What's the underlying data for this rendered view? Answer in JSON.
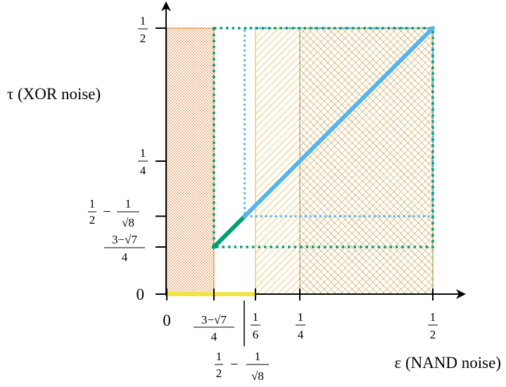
{
  "axes": {
    "x_label": "ε (NAND noise)",
    "y_label": "τ (XOR noise)",
    "x_ticks": [
      {
        "key": "zero",
        "text": "0",
        "value": 0
      },
      {
        "key": "c",
        "num": "3−√7",
        "den": "4",
        "value": 0.0886
      },
      {
        "key": "h",
        "prefix": "1",
        "prefix_den": "2",
        "minus": "−",
        "num": "1",
        "den": "√8",
        "value": 0.1464
      },
      {
        "key": "sixth",
        "num": "1",
        "den": "6",
        "value": 0.1667
      },
      {
        "key": "quarter",
        "num": "1",
        "den": "4",
        "value": 0.25
      },
      {
        "key": "half",
        "num": "1",
        "den": "2",
        "value": 0.5
      }
    ],
    "y_ticks": [
      {
        "key": "zero",
        "text": "0",
        "value": 0
      },
      {
        "key": "c",
        "num": "3−√7",
        "den": "4",
        "value": 0.0886
      },
      {
        "key": "h",
        "prefix": "1",
        "prefix_den": "2",
        "minus": "−",
        "num": "1",
        "den": "√8",
        "value": 0.1464
      },
      {
        "key": "quarter",
        "num": "1",
        "den": "4",
        "value": 0.25
      },
      {
        "key": "half",
        "num": "1",
        "den": "2",
        "value": 0.5
      }
    ]
  },
  "regions": {
    "dotted_region": {
      "x_range": [
        0,
        0.0886
      ],
      "y_range": [
        0,
        0.5
      ],
      "color": "#d55e00"
    },
    "hatched_region": {
      "x_range": [
        0.1667,
        0.5
      ],
      "y_range": [
        0,
        0.5
      ],
      "color": "#e69f00"
    },
    "crosshatch_region": {
      "x_range": [
        0.25,
        0.5
      ],
      "y_range": [
        0,
        0.5
      ],
      "color": "#8c6d3a"
    },
    "green_box": {
      "x_range": [
        0.0886,
        0.5
      ],
      "y_range": [
        0.0886,
        0.5
      ],
      "color": "#009e73"
    },
    "blue_box": {
      "x_range": [
        0.1464,
        0.5
      ],
      "y_range": [
        0.1464,
        0.5
      ],
      "color": "#56b4e9"
    }
  },
  "lines": {
    "green_segment": {
      "from": [
        0.0886,
        0.0886
      ],
      "to": [
        0.1464,
        0.1464
      ],
      "color": "#009e73"
    },
    "blue_segment": {
      "from": [
        0.1464,
        0.1464
      ],
      "to": [
        0.5,
        0.5
      ],
      "color": "#56b4e9"
    },
    "yellow_segment": {
      "from": [
        0,
        0
      ],
      "to": [
        0.1667,
        0
      ],
      "color": "#f0e442"
    }
  }
}
